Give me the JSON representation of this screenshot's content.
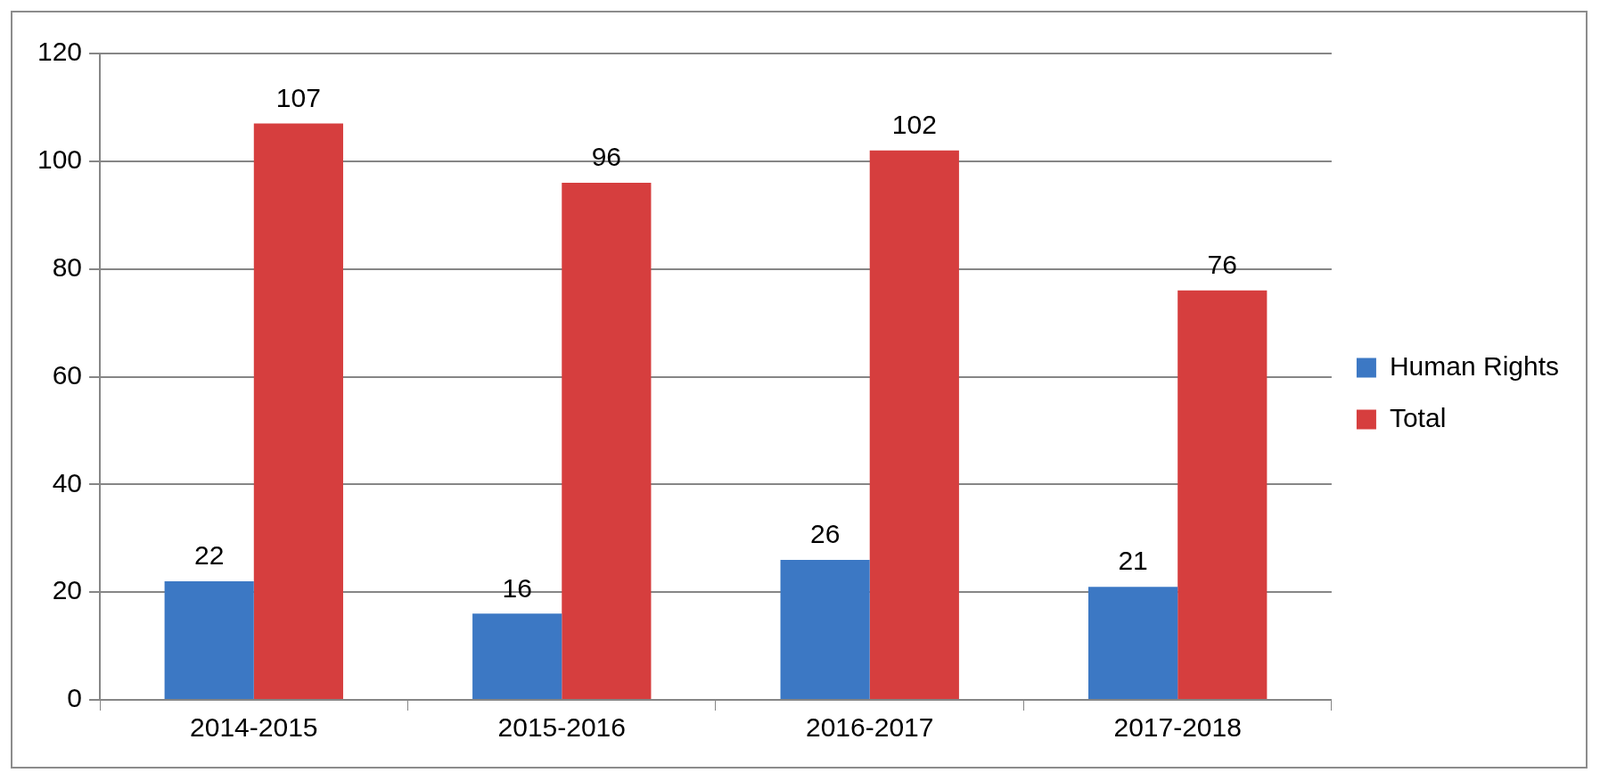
{
  "chart_data": {
    "type": "bar",
    "categories": [
      "2014-2015",
      "2015-2016",
      "2016-2017",
      "2017-2018"
    ],
    "series": [
      {
        "name": "Human Rights",
        "color": "#3c78c4",
        "values": [
          22,
          16,
          26,
          21
        ]
      },
      {
        "name": "Total",
        "color": "#d63e3e",
        "values": [
          107,
          96,
          102,
          76
        ]
      }
    ],
    "ylim": [
      0,
      120
    ],
    "yticks": [
      0,
      20,
      40,
      60,
      80,
      100,
      120
    ],
    "grid": true,
    "legend": "right",
    "data_labels": true
  }
}
